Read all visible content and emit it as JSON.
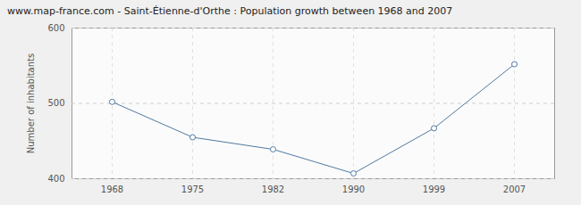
{
  "chart_data": {
    "type": "line",
    "title": "www.map-france.com - Saint-Étienne-d'Orthe : Population growth between 1968 and 2007",
    "y_label": "Number of inhabitants",
    "categories": [
      "1968",
      "1975",
      "1982",
      "1990",
      "1999",
      "2007"
    ],
    "values": [
      502,
      455,
      439,
      407,
      467,
      552
    ],
    "color": "#4f7aa3",
    "marker": "circle",
    "ylim": [
      400,
      600
    ],
    "yticks": [
      400,
      500,
      600
    ],
    "grid": true
  }
}
